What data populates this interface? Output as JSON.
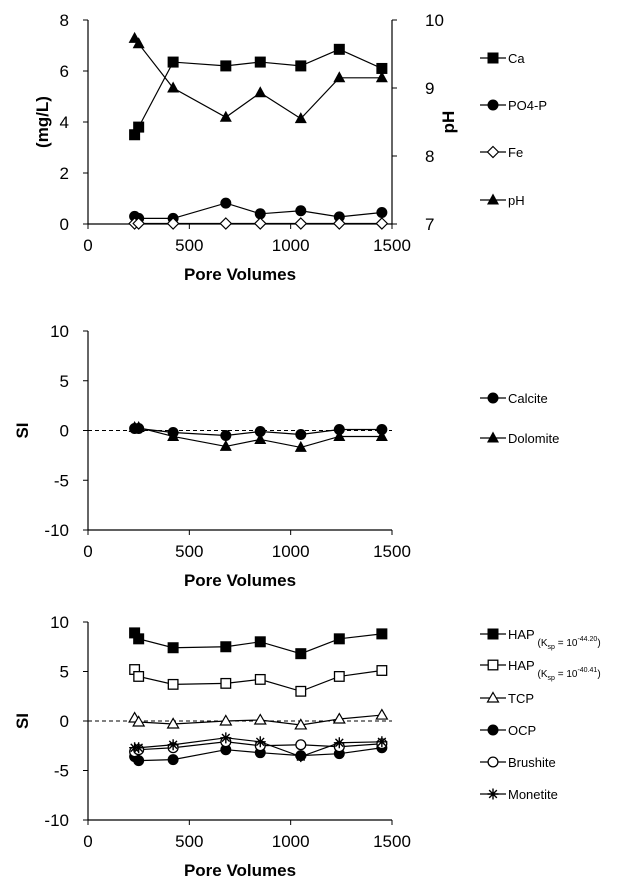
{
  "chart_data": [
    {
      "type": "line",
      "xlabel": "Pore Volumes",
      "ylabel": "(mg/L)",
      "y2label": "pH",
      "xlim": [
        0,
        1500
      ],
      "xticks": [
        "0",
        "500",
        "1000",
        "1500"
      ],
      "ylim": [
        0,
        8
      ],
      "yticks": [
        "0",
        "2",
        "4",
        "6",
        "8"
      ],
      "y2lim": [
        7,
        10
      ],
      "y2ticks": [
        "7",
        "8",
        "9",
        "10"
      ],
      "legend_position": "right",
      "series": [
        {
          "name": "Ca",
          "marker": "square-filled",
          "axis": "left",
          "x": [
            230,
            250,
            420,
            680,
            850,
            1050,
            1240,
            1450
          ],
          "y": [
            3.5,
            3.8,
            6.35,
            6.2,
            6.35,
            6.2,
            6.85,
            6.1
          ]
        },
        {
          "name": "PO4-P",
          "marker": "circle-filled",
          "axis": "left",
          "x": [
            230,
            250,
            420,
            680,
            850,
            1050,
            1240,
            1450
          ],
          "y": [
            0.3,
            0.22,
            0.22,
            0.82,
            0.4,
            0.52,
            0.28,
            0.45
          ]
        },
        {
          "name": "Fe",
          "marker": "diamond-open",
          "axis": "left",
          "x": [
            230,
            250,
            420,
            680,
            850,
            1050,
            1240,
            1450
          ],
          "y": [
            0.02,
            0.02,
            0.02,
            0.02,
            0.02,
            0.02,
            0.02,
            0.02
          ]
        },
        {
          "name": "pH",
          "marker": "triangle-filled",
          "axis": "right",
          "x": [
            230,
            250,
            420,
            680,
            850,
            1050,
            1240,
            1450
          ],
          "y": [
            9.73,
            9.65,
            9.0,
            8.57,
            8.93,
            8.55,
            9.15,
            9.15
          ]
        }
      ]
    },
    {
      "type": "line",
      "xlabel": "Pore Volumes",
      "ylabel": "SI",
      "xlim": [
        0,
        1500
      ],
      "xticks": [
        "0",
        "500",
        "1000",
        "1500"
      ],
      "ylim": [
        -10,
        10
      ],
      "yticks": [
        "-10",
        "-5",
        "0",
        "5",
        "10"
      ],
      "reference_line": 0,
      "legend_position": "right",
      "series": [
        {
          "name": "Calcite",
          "marker": "circle-filled",
          "x": [
            230,
            250,
            420,
            680,
            850,
            1050,
            1240,
            1450
          ],
          "y": [
            0.2,
            0.2,
            -0.2,
            -0.5,
            -0.1,
            -0.4,
            0.1,
            0.1
          ]
        },
        {
          "name": "Dolomite",
          "marker": "triangle-filled",
          "x": [
            230,
            250,
            420,
            680,
            850,
            1050,
            1240,
            1450
          ],
          "y": [
            0.3,
            0.3,
            -0.6,
            -1.6,
            -0.9,
            -1.7,
            -0.6,
            -0.6
          ]
        }
      ]
    },
    {
      "type": "line",
      "xlabel": "Pore Volumes",
      "ylabel": "SI",
      "xlim": [
        0,
        1500
      ],
      "xticks": [
        "0",
        "500",
        "1000",
        "1500"
      ],
      "ylim": [
        -10,
        10
      ],
      "yticks": [
        "-10",
        "-5",
        "0",
        "5",
        "10"
      ],
      "reference_line": 0,
      "legend_position": "right",
      "series": [
        {
          "name": "HAP",
          "name_sub": "(K",
          "name_subsub": "sp",
          "name_sup_base": " = 10",
          "name_sup": "-44.20",
          "name_close": ")",
          "marker": "square-filled",
          "x": [
            230,
            250,
            420,
            680,
            850,
            1050,
            1240,
            1450
          ],
          "y": [
            8.9,
            8.3,
            7.4,
            7.5,
            8.0,
            6.8,
            8.3,
            8.8
          ]
        },
        {
          "name": "HAP",
          "name_sub": "(K",
          "name_subsub": "sp",
          "name_sup_base": " = 10",
          "name_sup": "-40.41",
          "name_close": ")",
          "marker": "square-open",
          "x": [
            230,
            250,
            420,
            680,
            850,
            1050,
            1240,
            1450
          ],
          "y": [
            5.2,
            4.5,
            3.7,
            3.8,
            4.2,
            3.0,
            4.5,
            5.1
          ]
        },
        {
          "name": "TCP",
          "marker": "triangle-open",
          "x": [
            230,
            250,
            420,
            680,
            850,
            1050,
            1240,
            1450
          ],
          "y": [
            0.3,
            -0.1,
            -0.3,
            0.0,
            0.1,
            -0.4,
            0.2,
            0.6
          ]
        },
        {
          "name": "OCP",
          "marker": "circle-filled",
          "x": [
            230,
            250,
            420,
            680,
            850,
            1050,
            1240,
            1450
          ],
          "y": [
            -3.6,
            -4.0,
            -3.9,
            -2.9,
            -3.2,
            -3.5,
            -3.3,
            -2.7
          ]
        },
        {
          "name": "Brushite",
          "marker": "circle-open",
          "x": [
            230,
            250,
            420,
            680,
            850,
            1050,
            1240,
            1450
          ],
          "y": [
            -3.1,
            -2.9,
            -2.7,
            -2.1,
            -2.5,
            -2.4,
            -2.6,
            -2.3
          ]
        },
        {
          "name": "Monetite",
          "marker": "asterisk",
          "x": [
            230,
            250,
            420,
            680,
            850,
            1050,
            1240,
            1450
          ],
          "y": [
            -2.7,
            -2.7,
            -2.4,
            -1.7,
            -2.1,
            -3.6,
            -2.2,
            -2.1
          ]
        }
      ]
    }
  ]
}
